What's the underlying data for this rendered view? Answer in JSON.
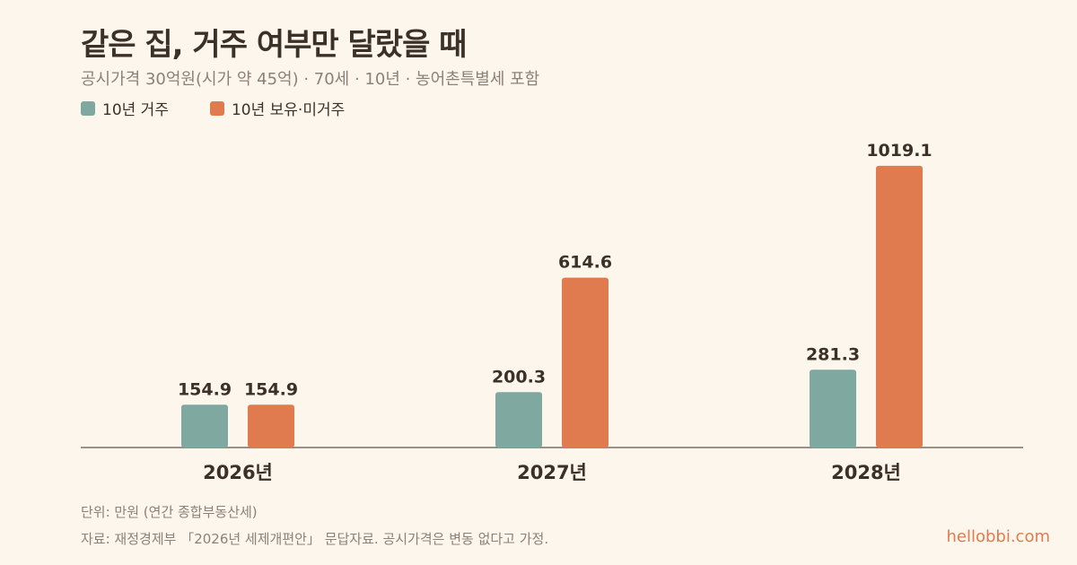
{
  "title": "같은 집, 거주 여부만 달랐을 때",
  "subtitle": "공시가격 30억원(시가 약 45억) · 70세 · 10년 · 농어촌특별세 포함",
  "legend": [
    {
      "label": "10년 거주",
      "color": "#7fa8a0"
    },
    {
      "label": "10년 보유·미거주",
      "color": "#e07a4f"
    }
  ],
  "unit_note": "단위: 만원 (연간 종합부동산세)",
  "source_note": "자료: 재정경제부 「2026년 세제개편안」 문답자료. 공시가격은 변동 없다고 가정.",
  "brand": "hellobbi.com",
  "chart_data": {
    "type": "bar",
    "categories": [
      "2026년",
      "2027년",
      "2028년"
    ],
    "series": [
      {
        "name": "10년 거주",
        "values": [
          154.9,
          200.3,
          281.3
        ],
        "color": "#7fa8a0"
      },
      {
        "name": "10년 보유·미거주",
        "values": [
          154.9,
          614.6,
          1019.1
        ],
        "color": "#e07a4f"
      }
    ],
    "ylim": [
      0,
      1100
    ],
    "grid": false,
    "legend_position": "top-left"
  }
}
